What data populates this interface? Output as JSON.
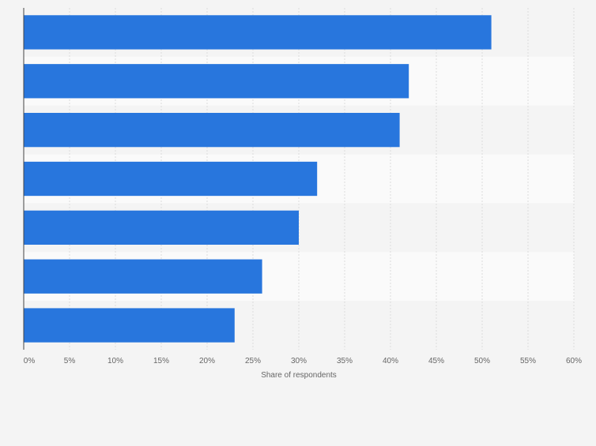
{
  "chart_data": {
    "type": "bar",
    "orientation": "horizontal",
    "categories": [
      "",
      "",
      "",
      "",
      "",
      "",
      ""
    ],
    "values": [
      51,
      42,
      41,
      32,
      30,
      26,
      23
    ],
    "xlabel": "Share of respondents",
    "x_ticks": [
      "0%",
      "5%",
      "10%",
      "15%",
      "20%",
      "25%",
      "30%",
      "35%",
      "40%",
      "45%",
      "50%",
      "55%",
      "60%"
    ],
    "xlim": [
      0,
      60
    ],
    "grid": true,
    "bar_color": "#2876dd",
    "band_colors": [
      "#f4f4f4",
      "#fafafa"
    ]
  }
}
